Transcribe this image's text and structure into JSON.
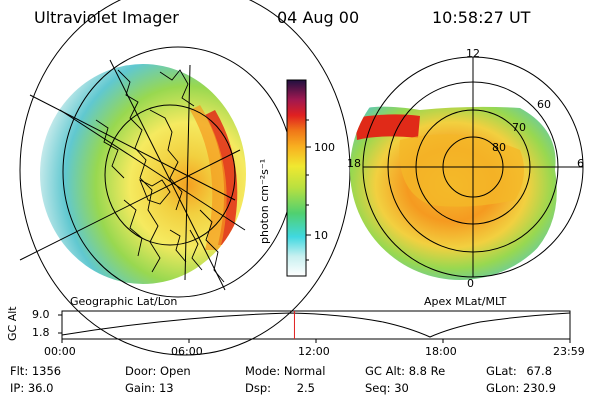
{
  "header": {
    "instrument": "Ultraviolet Imager",
    "date": "04 Aug 00",
    "time": "10:58:27 UT"
  },
  "colorbar": {
    "unit_label": "photon cm⁻²s⁻¹",
    "ticks": [
      "100",
      "10"
    ]
  },
  "left_map": {
    "caption": "Geographic Lat/Lon"
  },
  "right_map": {
    "caption": "Apex MLat/MLT",
    "mlt_labels": {
      "top": "12",
      "left": "18",
      "right": "6",
      "bottom": "0"
    },
    "lat_labels": [
      "60",
      "70",
      "80"
    ]
  },
  "altitude_plot": {
    "ylabel": "GC Alt",
    "yticks": [
      "9.0",
      "1.8"
    ],
    "xticks": [
      "00:00",
      "06:00",
      "12:00",
      "18:00",
      "23:59"
    ],
    "current_time_fraction": 0.4576
  },
  "info": {
    "flt_label": "Flt:",
    "flt_value": "1356",
    "ip_label": "IP:",
    "ip_value": "36.0",
    "door_label": "Door:",
    "door_value": "Open",
    "gain_label": "Gain:",
    "gain_value": "13",
    "mode_label": "Mode:",
    "mode_value": "Normal",
    "dsp_label": "Dsp:",
    "dsp_value": "2.5",
    "gcalt_label": "GC Alt:",
    "gcalt_value": "8.8 Re",
    "seq_label": "Seq:",
    "seq_value": "30",
    "glat_label": "GLat:",
    "glat_value": "67.8",
    "glon_label": "GLon:",
    "glon_value": "230.9"
  },
  "colors": {
    "ring_yellow": "#f2e040",
    "oval_orange": "#f59a20",
    "hot_red": "#e02a18",
    "green": "#7ed24a",
    "cyan": "#50d8e0"
  }
}
